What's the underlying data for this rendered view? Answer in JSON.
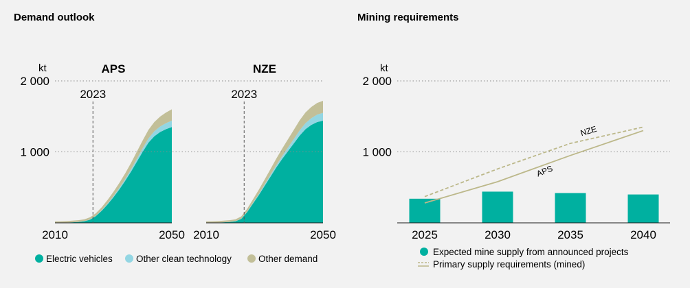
{
  "chart_data": [
    {
      "type": "area",
      "title": "Demand outlook",
      "unit": "kt",
      "ylim": [
        0,
        2000
      ],
      "yticks": [
        {
          "value": 1000,
          "label": "1 000"
        },
        {
          "value": 2000,
          "label": "2 000"
        }
      ],
      "xlim": [
        2010,
        2050
      ],
      "xtick_labels": [
        "2010",
        "2050"
      ],
      "marker_year": 2023,
      "marker_label": "2023",
      "legend": [
        {
          "name": "Electric vehicles",
          "color": "#00b0a0"
        },
        {
          "name": "Other clean technology",
          "color": "#93d6e3"
        },
        {
          "name": "Other demand",
          "color": "#c2bf98"
        }
      ],
      "panels": [
        {
          "name": "APS",
          "x": [
            2010,
            2012,
            2014,
            2016,
            2018,
            2020,
            2022,
            2024,
            2026,
            2028,
            2030,
            2032,
            2034,
            2036,
            2038,
            2040,
            2042,
            2044,
            2046,
            2048,
            2050
          ],
          "series": [
            {
              "name": "Electric vehicles",
              "values": [
                2,
                3,
                5,
                8,
                12,
                22,
                45,
                95,
                170,
                260,
                360,
                470,
                590,
                720,
                860,
                1000,
                1130,
                1220,
                1280,
                1320,
                1350
              ]
            },
            {
              "name": "Other clean technology",
              "values": [
                0,
                0,
                0,
                1,
                1,
                2,
                3,
                5,
                8,
                12,
                16,
                20,
                25,
                32,
                40,
                50,
                60,
                70,
                78,
                84,
                90
              ]
            },
            {
              "name": "Other demand",
              "values": [
                18,
                19,
                20,
                22,
                24,
                26,
                30,
                35,
                42,
                50,
                60,
                70,
                80,
                90,
                100,
                110,
                120,
                130,
                140,
                150,
                160
              ]
            }
          ]
        },
        {
          "name": "NZE",
          "x": [
            2010,
            2012,
            2014,
            2016,
            2018,
            2020,
            2022,
            2024,
            2026,
            2028,
            2030,
            2032,
            2034,
            2036,
            2038,
            2040,
            2042,
            2044,
            2046,
            2048,
            2050
          ],
          "series": [
            {
              "name": "Electric vehicles",
              "values": [
                2,
                3,
                5,
                8,
                12,
                22,
                55,
                150,
                270,
                390,
                520,
                650,
                780,
                900,
                1010,
                1120,
                1230,
                1320,
                1380,
                1420,
                1440
              ]
            },
            {
              "name": "Other clean technology",
              "values": [
                0,
                0,
                0,
                1,
                1,
                2,
                3,
                6,
                10,
                15,
                20,
                26,
                33,
                40,
                50,
                60,
                72,
                85,
                95,
                105,
                110
              ]
            },
            {
              "name": "Other demand",
              "values": [
                18,
                19,
                20,
                22,
                24,
                26,
                32,
                40,
                50,
                60,
                70,
                80,
                92,
                105,
                118,
                130,
                142,
                150,
                158,
                165,
                170
              ]
            }
          ]
        }
      ]
    },
    {
      "type": "bar",
      "title": "Mining requirements",
      "unit": "kt",
      "ylim": [
        0,
        2000
      ],
      "yticks": [
        {
          "value": 1000,
          "label": "1 000"
        },
        {
          "value": 2000,
          "label": "2 000"
        }
      ],
      "categories": [
        "2025",
        "2030",
        "2035",
        "2040"
      ],
      "bars": {
        "name": "Expected mine supply from announced projects",
        "color": "#00b0a0",
        "values": [
          340,
          440,
          420,
          400
        ]
      },
      "lines": [
        {
          "name": "APS",
          "label": "APS",
          "style": "solid",
          "color": "#bcb88a",
          "x": [
            2025,
            2030,
            2035,
            2040
          ],
          "values": [
            280,
            580,
            950,
            1300
          ]
        },
        {
          "name": "NZE",
          "label": "NZE",
          "style": "dashed",
          "color": "#bcb88a",
          "x": [
            2025,
            2030,
            2035,
            2040
          ],
          "values": [
            370,
            760,
            1120,
            1350
          ]
        }
      ],
      "legend": [
        {
          "name": "Expected mine supply from announced projects",
          "shape": "dot",
          "color": "#00b0a0"
        },
        {
          "name": "Primary supply requirements (mined)",
          "shape": "lines",
          "color": "#bcb88a"
        }
      ]
    }
  ]
}
